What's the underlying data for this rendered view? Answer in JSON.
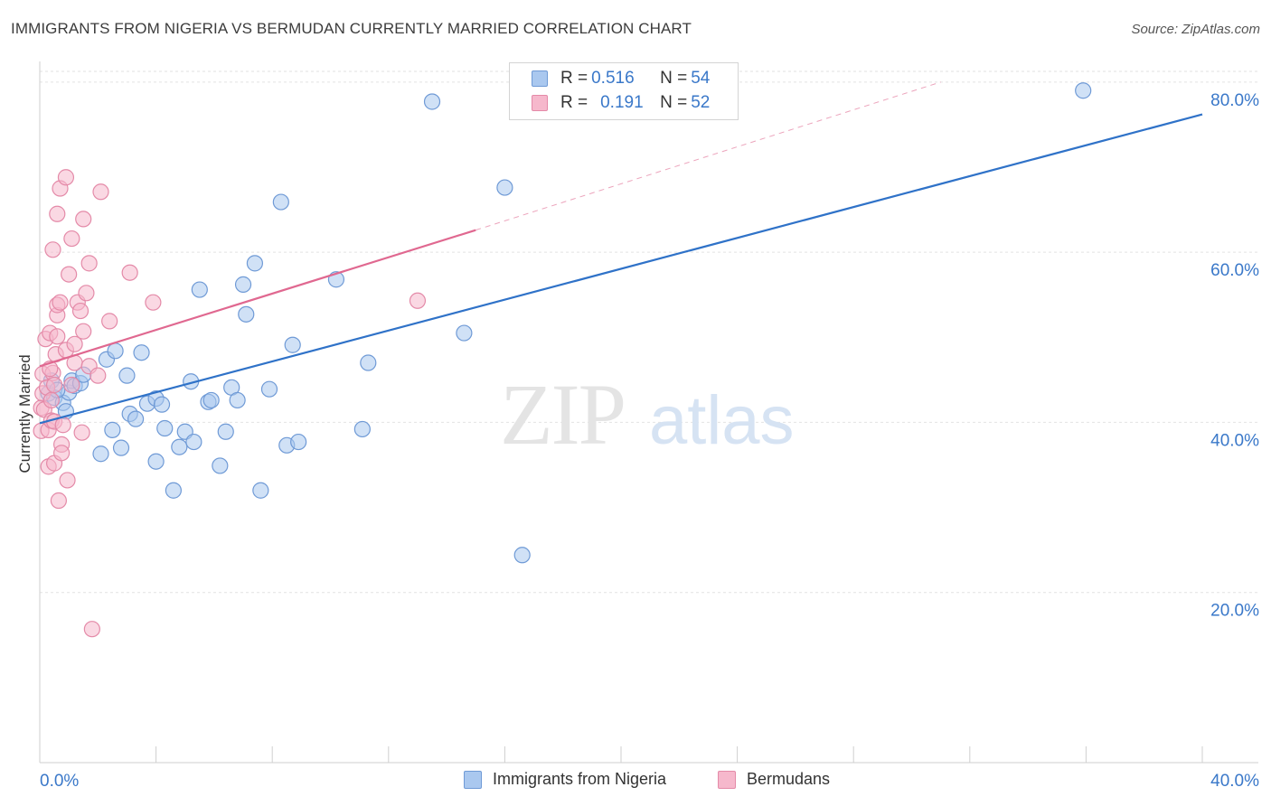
{
  "title": "IMMIGRANTS FROM NIGERIA VS BERMUDAN CURRENTLY MARRIED CORRELATION CHART",
  "source": "Source: ZipAtlas.com",
  "watermark": {
    "zip": "ZIP",
    "atlas": "atlas"
  },
  "legend": {
    "series1": {
      "r_label": "R = ",
      "r_value": "0.516",
      "n_label": "N = ",
      "n_value": "54"
    },
    "series2": {
      "r_label": "R = ",
      "r_value": "0.191",
      "n_label": "N = ",
      "n_value": "52"
    }
  },
  "colors": {
    "blue_fill": "#aac8ef",
    "blue_stroke": "#6f9ad6",
    "blue_line": "#2f72c8",
    "pink_fill": "#f6b8cc",
    "pink_stroke": "#e48aa8",
    "pink_line": "#e06890",
    "axis_label": "#3a78c9"
  },
  "chart_data": {
    "type": "scatter",
    "xlabel": "",
    "ylabel": "Currently Married",
    "xlim": [
      0,
      40
    ],
    "ylim": [
      0,
      82
    ],
    "x_tick_labels": [
      "0.0%",
      "40.0%"
    ],
    "y_ticks": [
      20,
      40,
      60,
      80
    ],
    "y_tick_labels": [
      "20.0%",
      "40.0%",
      "60.0%",
      "80.0%"
    ],
    "grid": true,
    "legend_position": "top-center",
    "series": [
      {
        "name": "Immigrants from Nigeria",
        "color": "#aac8ef",
        "trend": {
          "x": [
            0,
            40
          ],
          "y": [
            39.9,
            76.2
          ],
          "style": "solid"
        },
        "points": [
          [
            0.3,
            43.4
          ],
          [
            0.4,
            44.9
          ],
          [
            0.5,
            42.9
          ],
          [
            0.8,
            42.3
          ],
          [
            0.9,
            41.3
          ],
          [
            1.0,
            43.5
          ],
          [
            1.1,
            44.9
          ],
          [
            1.2,
            44.3
          ],
          [
            1.4,
            44.6
          ],
          [
            1.5,
            45.6
          ],
          [
            2.1,
            36.3
          ],
          [
            2.3,
            47.4
          ],
          [
            2.5,
            39.1
          ],
          [
            2.6,
            48.4
          ],
          [
            2.8,
            37.0
          ],
          [
            3.0,
            45.5
          ],
          [
            3.1,
            41.0
          ],
          [
            3.3,
            40.4
          ],
          [
            3.5,
            48.2
          ],
          [
            3.7,
            42.2
          ],
          [
            4.0,
            42.8
          ],
          [
            4.0,
            35.4
          ],
          [
            4.2,
            42.1
          ],
          [
            4.3,
            39.3
          ],
          [
            4.6,
            32.0
          ],
          [
            4.8,
            37.1
          ],
          [
            5.0,
            38.9
          ],
          [
            5.2,
            44.8
          ],
          [
            5.3,
            37.7
          ],
          [
            5.5,
            55.6
          ],
          [
            5.8,
            42.4
          ],
          [
            5.9,
            42.6
          ],
          [
            6.2,
            34.9
          ],
          [
            6.4,
            38.9
          ],
          [
            6.6,
            44.1
          ],
          [
            6.8,
            42.6
          ],
          [
            7.0,
            56.2
          ],
          [
            7.1,
            52.7
          ],
          [
            7.4,
            58.7
          ],
          [
            7.6,
            32.0
          ],
          [
            7.9,
            43.9
          ],
          [
            8.3,
            65.9
          ],
          [
            8.5,
            37.3
          ],
          [
            8.7,
            49.1
          ],
          [
            8.9,
            37.7
          ],
          [
            10.2,
            56.8
          ],
          [
            11.1,
            39.2
          ],
          [
            11.3,
            47.0
          ],
          [
            13.5,
            77.7
          ],
          [
            14.6,
            50.5
          ],
          [
            16.0,
            67.6
          ],
          [
            16.6,
            24.4
          ],
          [
            35.9,
            79.0
          ],
          [
            0.6,
            43.8
          ]
        ]
      },
      {
        "name": "Bermudans",
        "color": "#f6b8cc",
        "trend": {
          "x": [
            0,
            15
          ],
          "y": [
            46.6,
            62.6
          ],
          "style": "solid",
          "ext_x": [
            15,
            31
          ],
          "ext_y": [
            62.6,
            80
          ]
        },
        "points": [
          [
            0.05,
            41.7
          ],
          [
            0.05,
            39.0
          ],
          [
            0.1,
            45.7
          ],
          [
            0.1,
            43.4
          ],
          [
            0.15,
            41.5
          ],
          [
            0.2,
            49.8
          ],
          [
            0.25,
            44.1
          ],
          [
            0.3,
            34.8
          ],
          [
            0.3,
            39.1
          ],
          [
            0.35,
            50.5
          ],
          [
            0.4,
            42.6
          ],
          [
            0.4,
            40.2
          ],
          [
            0.45,
            60.3
          ],
          [
            0.45,
            45.8
          ],
          [
            0.5,
            44.4
          ],
          [
            0.5,
            35.2
          ],
          [
            0.5,
            40.1
          ],
          [
            0.55,
            48.0
          ],
          [
            0.6,
            50.1
          ],
          [
            0.6,
            52.6
          ],
          [
            0.6,
            64.5
          ],
          [
            0.6,
            53.8
          ],
          [
            0.65,
            30.8
          ],
          [
            0.7,
            54.1
          ],
          [
            0.7,
            67.5
          ],
          [
            0.75,
            37.4
          ],
          [
            0.75,
            36.4
          ],
          [
            0.8,
            39.7
          ],
          [
            0.9,
            48.5
          ],
          [
            0.9,
            68.8
          ],
          [
            0.95,
            33.2
          ],
          [
            1.0,
            57.4
          ],
          [
            1.1,
            61.6
          ],
          [
            1.1,
            44.4
          ],
          [
            1.2,
            49.2
          ],
          [
            1.2,
            47.0
          ],
          [
            1.3,
            54.1
          ],
          [
            1.4,
            53.1
          ],
          [
            1.45,
            38.8
          ],
          [
            1.5,
            63.9
          ],
          [
            1.5,
            50.7
          ],
          [
            1.6,
            55.2
          ],
          [
            1.7,
            46.6
          ],
          [
            1.7,
            58.7
          ],
          [
            1.8,
            15.7
          ],
          [
            2.0,
            45.5
          ],
          [
            2.1,
            67.1
          ],
          [
            2.4,
            51.9
          ],
          [
            3.1,
            57.6
          ],
          [
            3.9,
            54.1
          ],
          [
            13.0,
            54.3
          ],
          [
            0.35,
            46.3
          ]
        ]
      }
    ]
  }
}
